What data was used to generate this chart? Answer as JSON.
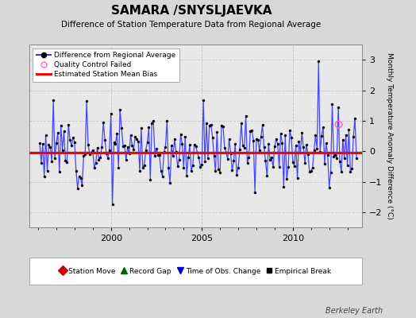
{
  "title": "SAMARA /SNYSLJAEVKA",
  "subtitle": "Difference of Station Temperature Data from Regional Average",
  "ylabel": "Monthly Temperature Anomaly Difference (°C)",
  "xlabel_years": [
    2000,
    2005,
    2010
  ],
  "ylim": [
    -2.5,
    3.5
  ],
  "yticks": [
    -2,
    -1,
    0,
    1,
    2,
    3
  ],
  "xlim_start": 1995.5,
  "xlim_end": 2013.8,
  "bias_line_y": -0.05,
  "line_color": "#3333ff",
  "bias_color": "#ff0000",
  "bg_color": "#d8d8d8",
  "plot_bg_color": "#e8e8e8",
  "marker_color": "#000000",
  "watermark": "Berkeley Earth",
  "legend1_items": [
    {
      "label": "Difference from Regional Average"
    },
    {
      "label": "Quality Control Failed"
    },
    {
      "label": "Estimated Station Mean Bias"
    }
  ],
  "legend2_items": [
    {
      "label": "Station Move",
      "color": "#cc0000",
      "marker": "D",
      "markersize": 6
    },
    {
      "label": "Record Gap",
      "color": "#006600",
      "marker": "^",
      "markersize": 6
    },
    {
      "label": "Time of Obs. Change",
      "color": "#0000cc",
      "marker": "v",
      "markersize": 6
    },
    {
      "label": "Empirical Break",
      "color": "#000000",
      "marker": "s",
      "markersize": 4
    }
  ],
  "seed": 12,
  "n_points": 210,
  "year_start": 1996.08,
  "year_end": 2013.5,
  "qc_x": 2012.5,
  "qc_y": 0.9
}
